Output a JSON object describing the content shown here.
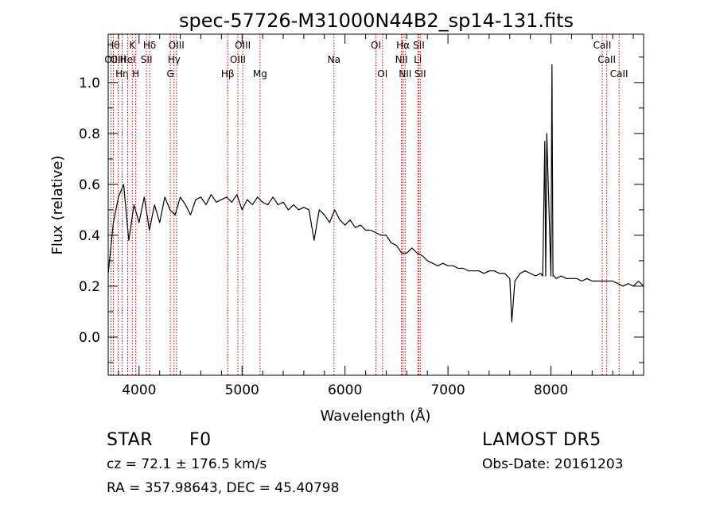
{
  "chart_data": {
    "type": "line",
    "title": "spec-57726-M31000N44B2_sp14-131.fits",
    "xlabel": "Wavelength (Å)",
    "ylabel": "Flux (relative)",
    "xlim": [
      3700,
      8900
    ],
    "ylim": [
      -0.15,
      1.19
    ],
    "xticks": [
      4000,
      5000,
      6000,
      7000,
      8000
    ],
    "yticks": [
      0.0,
      0.2,
      0.4,
      0.6,
      0.8,
      1.0
    ],
    "ytick_labels": [
      "0.0",
      "0.2",
      "0.4",
      "0.6",
      "0.8",
      "1.0"
    ],
    "grid": false,
    "line_color": "#000000",
    "marker_color": "#cc0000",
    "series": [
      {
        "x": [
          3700,
          3750,
          3800,
          3850,
          3900,
          3950,
          4000,
          4050,
          4100,
          4150,
          4200,
          4250,
          4300,
          4350,
          4400,
          4450,
          4500,
          4550,
          4600,
          4650,
          4700,
          4750,
          4800,
          4850,
          4900,
          4950,
          5000,
          5050,
          5100,
          5150,
          5200,
          5250,
          5300,
          5350,
          5400,
          5450,
          5500,
          5550,
          5600,
          5650,
          5700,
          5750,
          5800,
          5850,
          5900,
          5950,
          6000,
          6050,
          6100,
          6150,
          6200,
          6250,
          6300,
          6350,
          6400,
          6450,
          6500,
          6550,
          6600,
          6650,
          6700,
          6750,
          6800,
          6850,
          6900,
          6950,
          7000,
          7050,
          7100,
          7150,
          7200,
          7250,
          7300,
          7350,
          7400,
          7450,
          7500,
          7550,
          7600,
          7620,
          7650,
          7700,
          7750,
          7800,
          7850,
          7900,
          7920,
          7940,
          7950,
          7960,
          8000,
          8010,
          8020,
          8030,
          8050,
          8100,
          8150,
          8200,
          8250,
          8300,
          8350,
          8400,
          8450,
          8500,
          8550,
          8600,
          8650,
          8700,
          8750,
          8800,
          8850,
          8900
        ],
        "y": [
          0.25,
          0.45,
          0.55,
          0.6,
          0.38,
          0.52,
          0.45,
          0.55,
          0.42,
          0.52,
          0.45,
          0.55,
          0.5,
          0.48,
          0.55,
          0.52,
          0.48,
          0.54,
          0.55,
          0.52,
          0.56,
          0.53,
          0.54,
          0.55,
          0.53,
          0.56,
          0.5,
          0.54,
          0.52,
          0.55,
          0.53,
          0.52,
          0.55,
          0.52,
          0.53,
          0.5,
          0.52,
          0.5,
          0.51,
          0.5,
          0.38,
          0.5,
          0.48,
          0.45,
          0.5,
          0.46,
          0.44,
          0.46,
          0.43,
          0.44,
          0.42,
          0.42,
          0.41,
          0.4,
          0.4,
          0.37,
          0.36,
          0.33,
          0.33,
          0.35,
          0.33,
          0.32,
          0.3,
          0.29,
          0.28,
          0.29,
          0.28,
          0.28,
          0.27,
          0.27,
          0.26,
          0.26,
          0.26,
          0.25,
          0.26,
          0.26,
          0.25,
          0.25,
          0.23,
          0.06,
          0.22,
          0.25,
          0.26,
          0.25,
          0.24,
          0.25,
          0.24,
          0.77,
          0.24,
          0.8,
          0.24,
          1.07,
          0.24,
          0.24,
          0.23,
          0.24,
          0.23,
          0.23,
          0.23,
          0.22,
          0.23,
          0.22,
          0.22,
          0.22,
          0.22,
          0.22,
          0.21,
          0.2,
          0.21,
          0.2,
          0.22,
          0.2
        ]
      }
    ],
    "line_markers": [
      {
        "wl": 3727,
        "label": "OII",
        "row": 2
      },
      {
        "wl": 3750,
        "label": "Hθ",
        "row": 1
      },
      {
        "wl": 3798,
        "label": "OIII",
        "row": 2
      },
      {
        "wl": 3835,
        "label": "Hη",
        "row": 3
      },
      {
        "wl": 3889,
        "label": "HeI",
        "row": 2
      },
      {
        "wl": 3934,
        "label": "K",
        "row": 1
      },
      {
        "wl": 3968,
        "label": "H",
        "row": 3
      },
      {
        "wl": 4072,
        "label": "SII",
        "row": 2
      },
      {
        "wl": 4102,
        "label": "Hδ",
        "row": 1
      },
      {
        "wl": 4304,
        "label": "G",
        "row": 3
      },
      {
        "wl": 4340,
        "label": "Hγ",
        "row": 2
      },
      {
        "wl": 4363,
        "label": "OIII",
        "row": 1
      },
      {
        "wl": 4861,
        "label": "Hβ",
        "row": 3
      },
      {
        "wl": 4959,
        "label": "OIII",
        "row": 2
      },
      {
        "wl": 5007,
        "label": "OIII",
        "row": 1
      },
      {
        "wl": 5175,
        "label": "Mg",
        "row": 3
      },
      {
        "wl": 5893,
        "label": "Na",
        "row": 2
      },
      {
        "wl": 6300,
        "label": "OI",
        "row": 1
      },
      {
        "wl": 6364,
        "label": "OI",
        "row": 3
      },
      {
        "wl": 6548,
        "label": "NII",
        "row": 2
      },
      {
        "wl": 6563,
        "label": "Hα",
        "row": 1
      },
      {
        "wl": 6584,
        "label": "NII",
        "row": 3
      },
      {
        "wl": 6707,
        "label": "Li",
        "row": 2
      },
      {
        "wl": 6717,
        "label": "SII",
        "row": 1
      },
      {
        "wl": 6731,
        "label": "SII",
        "row": 3
      },
      {
        "wl": 8498,
        "label": "CaII",
        "row": 1
      },
      {
        "wl": 8542,
        "label": "CaII",
        "row": 2
      },
      {
        "wl": 8662,
        "label": "CaII",
        "row": 3
      }
    ]
  },
  "info": {
    "class_label": "STAR",
    "subclass_label": "F0",
    "survey_label": "LAMOST DR5",
    "cz_text": "cz = 72.1 ± 176.5 km/s",
    "obs_date_text": "Obs-Date: 20161203",
    "coords_text": "RA = 357.98643, DEC =  45.40798"
  }
}
